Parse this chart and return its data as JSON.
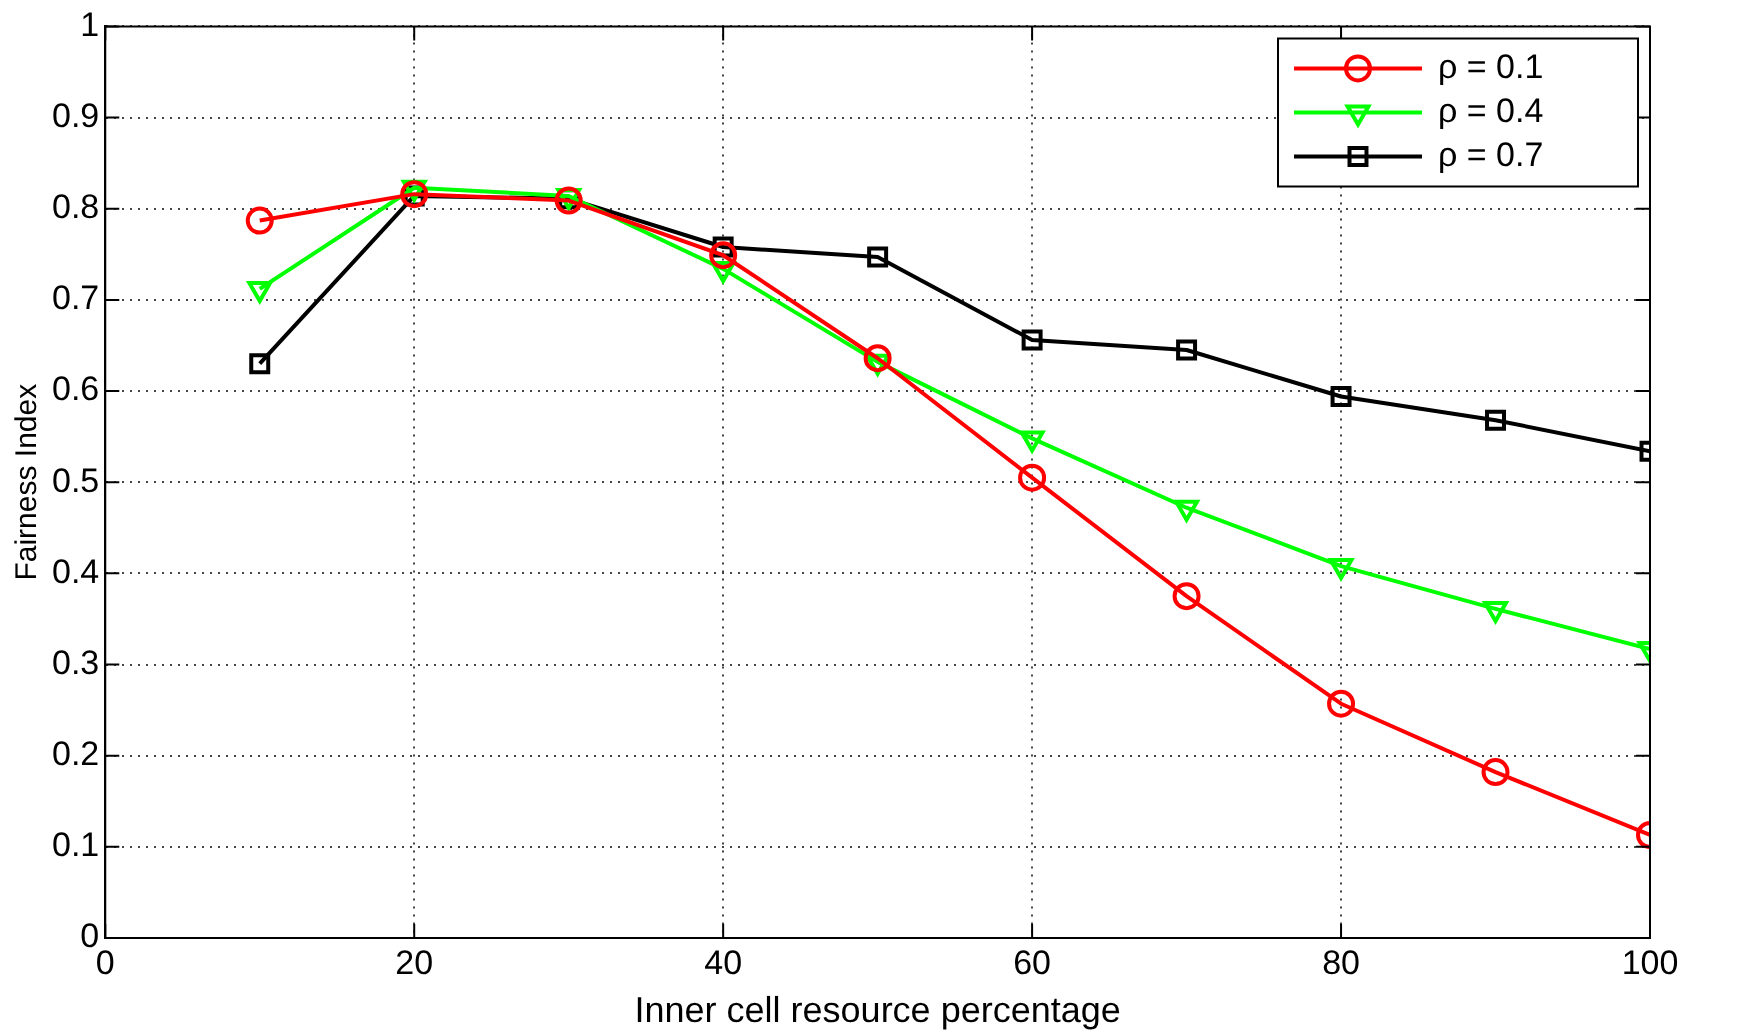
{
  "chart_data": {
    "type": "line",
    "xlabel": "Inner cell resource percentage",
    "ylabel": "Fairness Index",
    "x": [
      10,
      20,
      30,
      40,
      50,
      60,
      70,
      80,
      90,
      100
    ],
    "series": [
      {
        "name": "ρ = 0.1",
        "color": "#ff0000",
        "marker": "circle",
        "values": [
          0.787,
          0.816,
          0.809,
          0.749,
          0.636,
          0.505,
          0.375,
          0.257,
          0.182,
          0.113
        ]
      },
      {
        "name": "ρ = 0.4",
        "color": "#00ff00",
        "marker": "triangle",
        "values": [
          0.712,
          0.823,
          0.814,
          0.734,
          0.632,
          0.548,
          0.472,
          0.408,
          0.361,
          0.317
        ]
      },
      {
        "name": "ρ = 0.7",
        "color": "#000000",
        "marker": "square",
        "values": [
          0.63,
          0.814,
          0.811,
          0.758,
          0.747,
          0.656,
          0.645,
          0.594,
          0.568,
          0.534
        ]
      }
    ],
    "xlim": [
      0,
      100
    ],
    "xticks": [
      0,
      20,
      40,
      60,
      80,
      100
    ],
    "ylim": [
      0,
      1
    ],
    "yticks": [
      0,
      0.1,
      0.2,
      0.3,
      0.4,
      0.5,
      0.6,
      0.7,
      0.8,
      0.9,
      1
    ],
    "grid": true,
    "legend": "top right",
    "line_style": "solid"
  }
}
